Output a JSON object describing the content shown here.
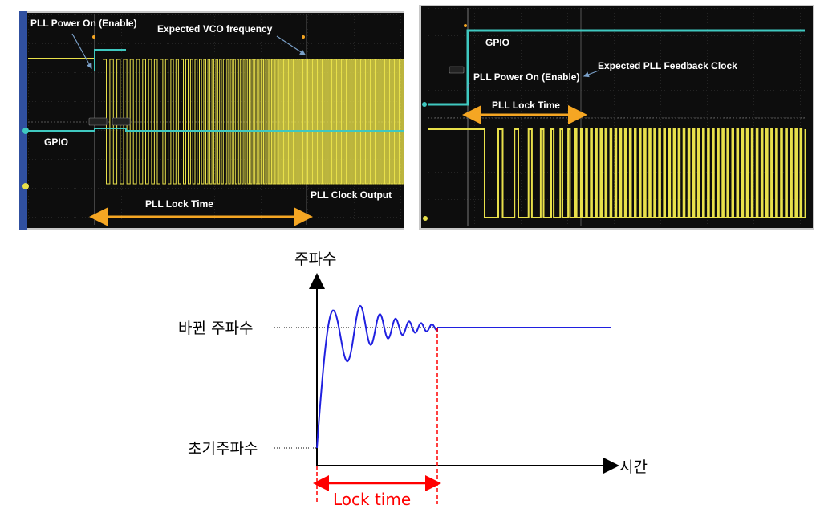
{
  "left_scope": {
    "labels": {
      "pll_power_on": "PLL Power On (Enable)",
      "expected_vco": "Expected VCO frequency",
      "gpio": "GPIO",
      "pll_lock_time": "PLL Lock Time",
      "pll_clock_output": "PLL Clock Output"
    }
  },
  "right_scope": {
    "labels": {
      "gpio": "GPIO",
      "pll_power_on": "PLL Power On (Enable)",
      "expected_feedback": "Expected PLL Feedback Clock",
      "pll_lock_time": "PLL Lock Time"
    }
  },
  "lock_diagram": {
    "y_axis_label": "주파수",
    "x_axis_label": "시간",
    "changed_freq_label": "바뀐 주파수",
    "initial_freq_label": "초기주파수",
    "lock_time_label": "Lock time"
  },
  "colors": {
    "scope_bg": "#0d0d0d",
    "grid": "#3a3a3a",
    "yellow": "#e8e04a",
    "cyan": "#3fc8c0",
    "orange": "#f5a623",
    "blue_curve": "#2020e0",
    "red": "#ff0000"
  }
}
